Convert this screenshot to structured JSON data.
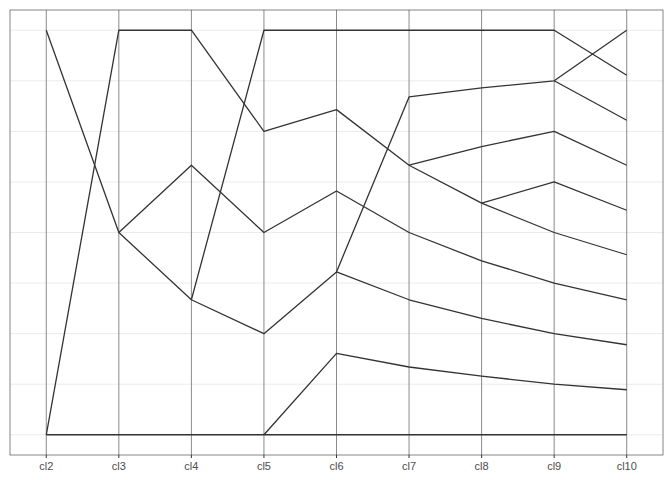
{
  "chart_data": {
    "type": "line",
    "categories": [
      "cl2",
      "cl3",
      "cl4",
      "cl5",
      "cl6",
      "cl7",
      "cl8",
      "cl9",
      "cl10"
    ],
    "color": "#333333",
    "grid": true,
    "tick_labels": "x",
    "ylim": [
      -0.4,
      8.4
    ],
    "yticks": [
      0,
      1,
      2,
      3,
      4,
      5,
      6,
      7,
      8
    ],
    "series": [
      {
        "values": [
          0,
          0,
          0,
          0,
          0,
          0,
          0,
          0,
          0
        ]
      },
      {
        "values": [
          8,
          4,
          2.67,
          2,
          3.22,
          6.68,
          6.86,
          7,
          8
        ]
      },
      {
        "values": [
          0,
          8,
          8,
          6,
          6.43,
          5.33,
          5.7,
          6,
          5.33
        ]
      },
      {
        "values": [
          null,
          4,
          5.33,
          4,
          4.82,
          4,
          3.44,
          3,
          2.67
        ]
      },
      {
        "values": [
          null,
          null,
          2.67,
          8,
          8,
          8,
          8,
          8,
          7.11
        ]
      },
      {
        "values": [
          null,
          null,
          null,
          0,
          1.61,
          1.34,
          1.16,
          1,
          0.89
        ]
      },
      {
        "values": [
          null,
          null,
          null,
          null,
          3.22,
          2.67,
          2.3,
          2,
          1.78
        ]
      },
      {
        "values": [
          null,
          null,
          null,
          null,
          null,
          5.33,
          4.58,
          5,
          4.44
        ]
      },
      {
        "values": [
          null,
          null,
          null,
          null,
          null,
          null,
          4.58,
          4,
          3.56
        ]
      },
      {
        "values": [
          null,
          null,
          null,
          null,
          null,
          null,
          null,
          7,
          6.22
        ]
      }
    ]
  }
}
